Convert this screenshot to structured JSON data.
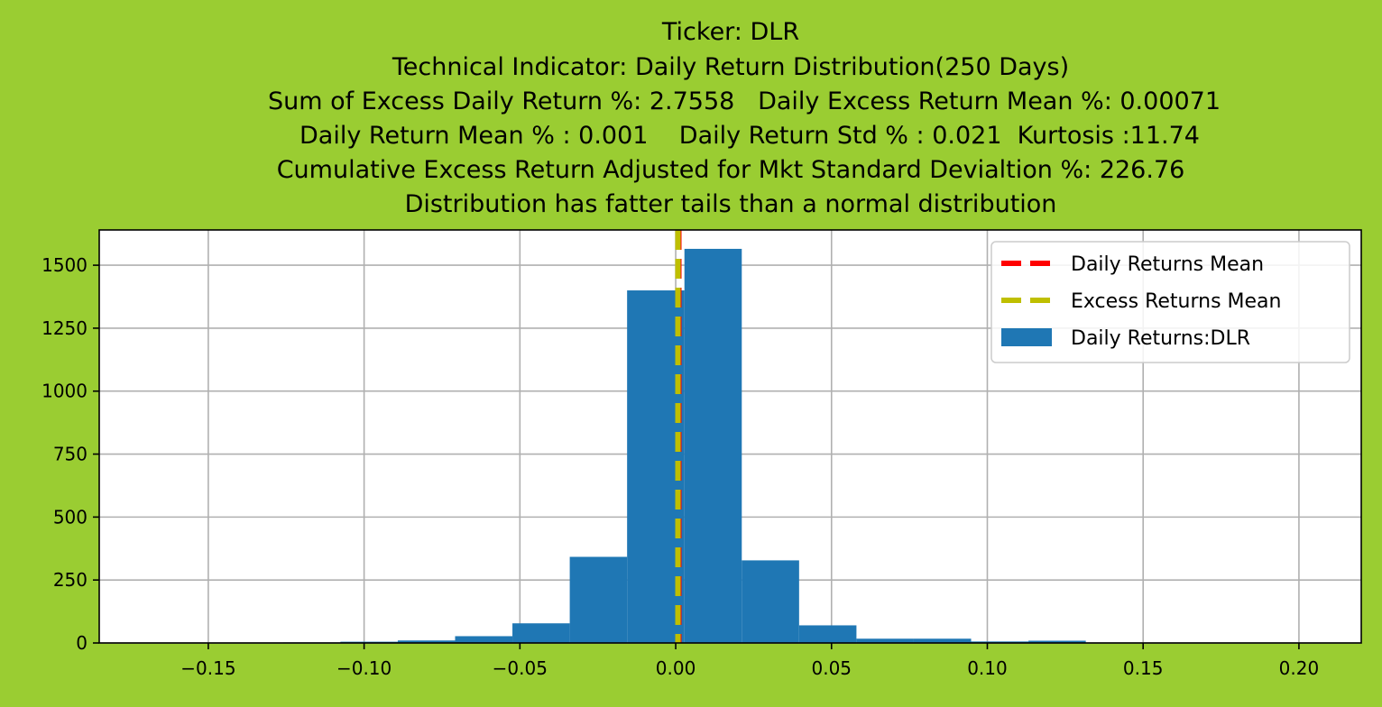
{
  "figure": {
    "background": "#9acd32"
  },
  "chart_data": {
    "type": "bar",
    "title_lines": [
      "Ticker: DLR",
      "Technical Indicator: Daily Return Distribution(250 Days)",
      "Sum of Excess Daily Return %: 2.7558   Daily Excess Return Mean %: 0.00071",
      "Daily Return Mean % : 0.001    Daily Return Std % : 0.021  Kurtosis :11.74",
      "Cumulative Excess Return Adjusted for Mkt Standard Devialtion %: 226.76",
      "Distribution has fatter tails than a normal distribution"
    ],
    "xlabel": "",
    "ylabel": "",
    "xlim": [
      -0.185,
      0.22
    ],
    "ylim": [
      0,
      1640
    ],
    "x_ticks": [
      -0.15,
      -0.1,
      -0.05,
      0.0,
      0.05,
      0.1,
      0.15,
      0.2
    ],
    "x_tick_labels": [
      "−0.15",
      "−0.10",
      "−0.05",
      "0.00",
      "0.05",
      "0.10",
      "0.15",
      "0.20"
    ],
    "y_ticks": [
      0,
      250,
      500,
      750,
      1000,
      1250,
      1500
    ],
    "y_tick_labels": [
      "0",
      "250",
      "500",
      "750",
      "1000",
      "1250",
      "1500"
    ],
    "grid": true,
    "legend_position": "top-right",
    "histogram": {
      "name": "Daily Returns:DLR",
      "color": "#1f77b4",
      "bins": [
        {
          "x0": -0.1444,
          "x1": -0.126,
          "count": 1
        },
        {
          "x0": -0.126,
          "x1": -0.1076,
          "count": 2
        },
        {
          "x0": -0.1076,
          "x1": -0.0892,
          "count": 5
        },
        {
          "x0": -0.0892,
          "x1": -0.0708,
          "count": 10
        },
        {
          "x0": -0.0708,
          "x1": -0.0524,
          "count": 27
        },
        {
          "x0": -0.0524,
          "x1": -0.034,
          "count": 78
        },
        {
          "x0": -0.034,
          "x1": -0.0156,
          "count": 342
        },
        {
          "x0": -0.0156,
          "x1": 0.0028,
          "count": 1400
        },
        {
          "x0": 0.0028,
          "x1": 0.0212,
          "count": 1565
        },
        {
          "x0": 0.0212,
          "x1": 0.0396,
          "count": 328
        },
        {
          "x0": 0.0396,
          "x1": 0.058,
          "count": 70
        },
        {
          "x0": 0.058,
          "x1": 0.0764,
          "count": 17
        },
        {
          "x0": 0.0764,
          "x1": 0.0948,
          "count": 17
        },
        {
          "x0": 0.0948,
          "x1": 0.1132,
          "count": 6
        },
        {
          "x0": 0.1132,
          "x1": 0.1316,
          "count": 9
        }
      ]
    },
    "series": [
      {
        "name": "Daily Returns Mean",
        "type": "vline",
        "x": 0.001,
        "color": "#ff0000",
        "dash": "dashed"
      },
      {
        "name": "Excess Returns Mean",
        "type": "vline",
        "x": 0.00071,
        "color": "#bfbf00",
        "dash": "dashed"
      }
    ],
    "legend": [
      {
        "label": "Daily Returns Mean",
        "kind": "dash",
        "color": "#ff0000"
      },
      {
        "label": "Excess Returns Mean",
        "kind": "dash",
        "color": "#bfbf00"
      },
      {
        "label": "Daily Returns:DLR",
        "kind": "patch",
        "color": "#1f77b4"
      }
    ]
  }
}
